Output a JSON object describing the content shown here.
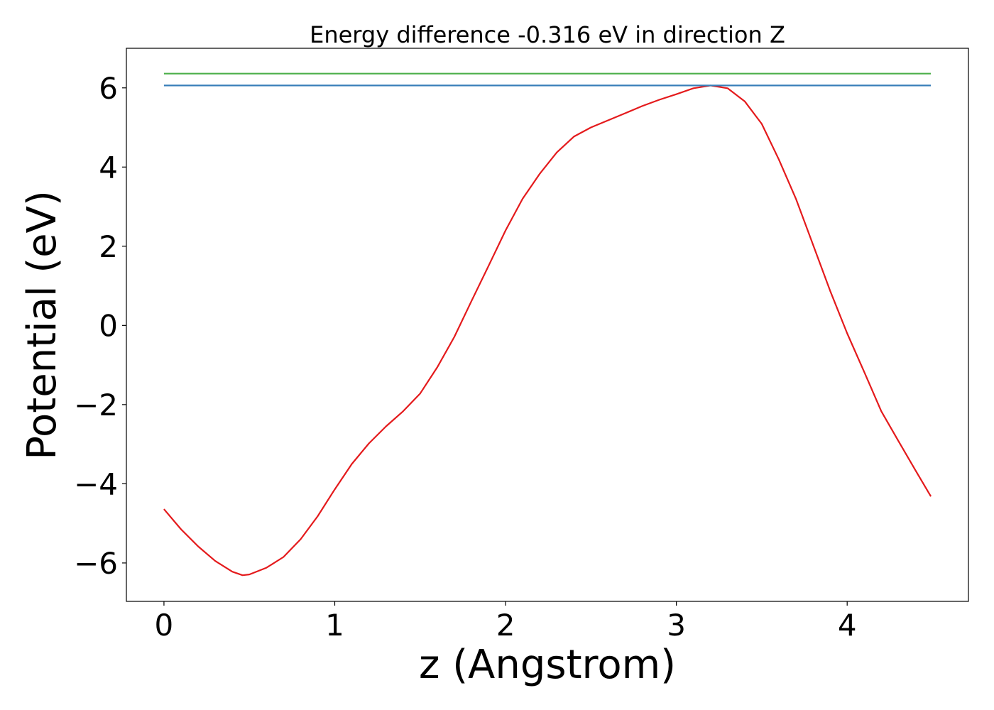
{
  "chart_data": {
    "type": "line",
    "title": "Energy difference -0.316 eV in direction Z",
    "xlabel": "z (Angstrom)",
    "ylabel": "Potential (eV)",
    "xlim": [
      -0.22,
      4.71
    ],
    "ylim": [
      -6.97,
      7.0
    ],
    "xticks": [
      0,
      1,
      2,
      3,
      4
    ],
    "xtick_labels": [
      "0",
      "1",
      "2",
      "3",
      "4"
    ],
    "yticks": [
      -6,
      -4,
      -2,
      0,
      2,
      4,
      6
    ],
    "ytick_labels": [
      "−6",
      "−4",
      "−2",
      "0",
      "2",
      "4",
      "6"
    ],
    "grid": false,
    "series": [
      {
        "color": "#e41a1c",
        "x": [
          0,
          0.1,
          0.2,
          0.3,
          0.4,
          0.46,
          0.5,
          0.6,
          0.7,
          0.8,
          0.9,
          1.0,
          1.1,
          1.2,
          1.3,
          1.4,
          1.5,
          1.6,
          1.7,
          1.8,
          1.9,
          2.0,
          2.1,
          2.2,
          2.3,
          2.4,
          2.5,
          2.6,
          2.7,
          2.8,
          2.9,
          3.0,
          3.1,
          3.2,
          3.3,
          3.4,
          3.5,
          3.6,
          3.7,
          3.8,
          3.9,
          4.0,
          4.1,
          4.2,
          4.3,
          4.4,
          4.49
        ],
        "y": [
          -4.64,
          -5.15,
          -5.58,
          -5.95,
          -6.22,
          -6.31,
          -6.29,
          -6.12,
          -5.85,
          -5.4,
          -4.82,
          -4.14,
          -3.5,
          -2.98,
          -2.55,
          -2.17,
          -1.72,
          -1.06,
          -0.29,
          0.61,
          1.5,
          2.4,
          3.2,
          3.83,
          4.37,
          4.77,
          5.0,
          5.18,
          5.36,
          5.54,
          5.7,
          5.84,
          5.99,
          6.06,
          5.99,
          5.66,
          5.09,
          4.19,
          3.2,
          2.04,
          0.88,
          -0.2,
          -1.18,
          -2.17,
          -2.92,
          -3.66,
          -4.32
        ]
      },
      {
        "color": "#4daf4a",
        "x": [
          0,
          4.49
        ],
        "y": [
          6.36,
          6.36
        ]
      },
      {
        "color": "#377eb8",
        "x": [
          0,
          4.49
        ],
        "y": [
          6.06,
          6.06
        ]
      }
    ]
  }
}
